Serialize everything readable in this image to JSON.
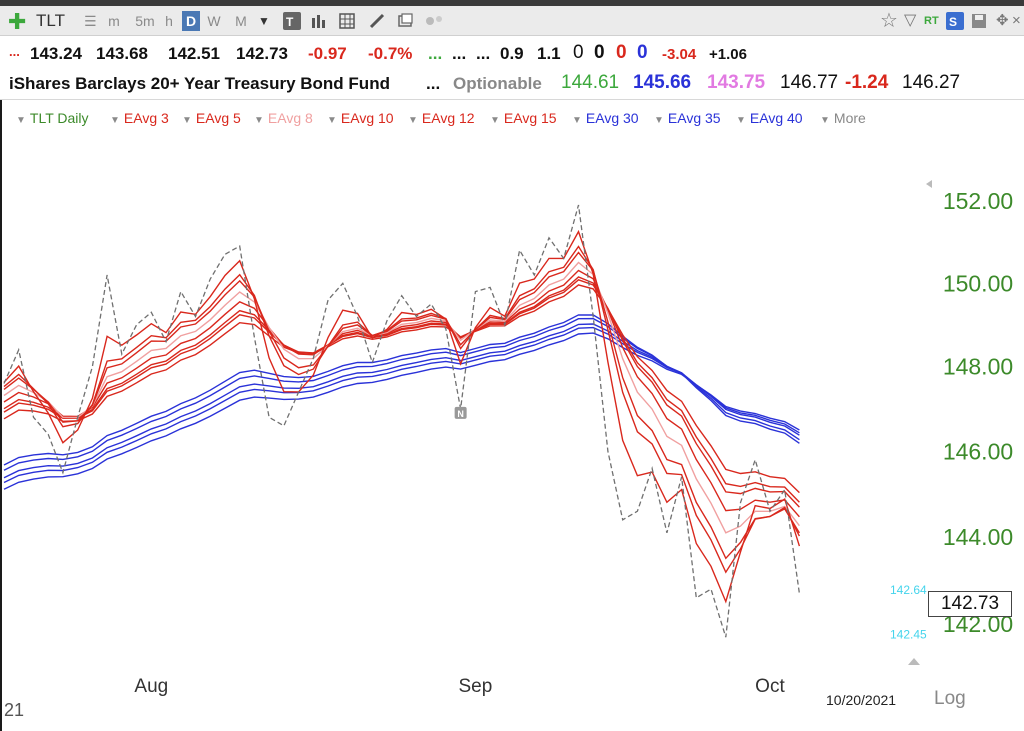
{
  "toolbar": {
    "symbol": "TLT",
    "timeframes": [
      "m",
      "5m",
      "h",
      "D",
      "W",
      "M"
    ],
    "active_timeframe": "D"
  },
  "quote": {
    "open": "143.24",
    "high": "143.68",
    "low": "142.51",
    "close": "142.73",
    "change": "-0.97",
    "change_pct": "-0.7%",
    "dots_green": "...",
    "dots": "...",
    "dots2": "...",
    "v1": "0.9",
    "v2": "1.1",
    "z1": "0",
    "z2": "0",
    "z3": "0",
    "z4": "0",
    "v3": "-3.04",
    "v4": "+1.06",
    "lead_dots": "..."
  },
  "info": {
    "name": "iShares Barclays 20+ Year Treasury Bond Fund",
    "dots": "...",
    "optionable": "Optionable",
    "p1": "144.61",
    "p2": "145.66",
    "p3": "143.75",
    "p4": "146.77",
    "p5": "-1.24",
    "p6": "146.27"
  },
  "legend": {
    "items": [
      "TLT Daily",
      "EAvg 3",
      "EAvg 5",
      "EAvg 8",
      "EAvg 10",
      "EAvg 12",
      "EAvg 15",
      "EAvg 30",
      "EAvg 35",
      "EAvg 40",
      "More"
    ]
  },
  "colors": {
    "price": "#707070",
    "ema_red": "#d9281d",
    "ema_pink": "#f0a0a0",
    "ema_blue": "#2a32d8",
    "axis_text": "#3c8a2a",
    "cyan": "#44d4ec"
  },
  "footer": {
    "date": "10/20/2021",
    "log": "Log",
    "last_price": "142.73",
    "edge": "21"
  },
  "chart_data": {
    "type": "line",
    "scale": "log",
    "ylim": [
      141.0,
      153.2
    ],
    "y_ticks": [
      "152.00",
      "150.00",
      "148.00",
      "146.00",
      "144.00",
      "142.00"
    ],
    "y_tick_values": [
      152,
      150,
      148,
      146,
      144,
      142
    ],
    "x_ticks": [
      {
        "label": "Aug",
        "index": 10
      },
      {
        "label": "Sep",
        "index": 32
      },
      {
        "label": "Oct",
        "index": 52
      }
    ],
    "x_count": 64,
    "price_label_hi": "142.64",
    "price_label_lo": "142.45",
    "series": [
      {
        "name": "TLT Daily",
        "values": [
          147.6,
          148.4,
          146.8,
          146.4,
          145.5,
          146.8,
          148.0,
          150.2,
          148.3,
          149.0,
          149.3,
          148.6,
          149.8,
          149.2,
          150.1,
          150.7,
          150.9,
          148.7,
          146.8,
          146.6,
          147.4,
          148.2,
          149.6,
          150.0,
          149.2,
          148.1,
          149.1,
          149.7,
          149.2,
          149.5,
          148.9,
          147.0,
          149.8,
          149.9,
          149.0,
          150.8,
          150.2,
          151.1,
          150.6,
          151.9,
          149.2,
          146.0,
          144.4,
          144.6,
          145.6,
          144.1,
          145.4,
          142.6,
          142.8,
          141.7,
          144.8,
          145.8,
          144.6,
          145.1,
          142.7
        ]
      }
    ],
    "ema_periods_red": [
      3,
      5,
      10,
      12,
      15
    ],
    "ema_periods_pink": [
      8
    ],
    "ema_periods_blue": [
      30,
      35,
      40
    ]
  }
}
